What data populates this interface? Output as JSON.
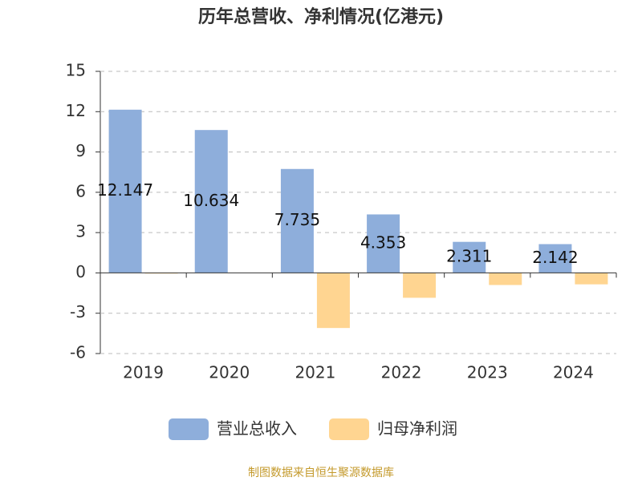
{
  "chart_data": {
    "type": "bar",
    "title": "历年总营收、净利情况(亿港元)",
    "categories": [
      "2019",
      "2020",
      "2021",
      "2022",
      "2023",
      "2024"
    ],
    "series": [
      {
        "name": "营业总收入",
        "color": "#8eaedb",
        "values": [
          12.147,
          10.634,
          7.735,
          4.353,
          2.311,
          2.142
        ],
        "show_labels": true
      },
      {
        "name": "归母净利润",
        "color": "#ffd591",
        "values": [
          -0.05,
          0,
          -4.1,
          -1.85,
          -0.9,
          -0.85
        ],
        "show_labels": false
      }
    ],
    "ylim": [
      -6,
      15
    ],
    "yticks": [
      -6,
      -3,
      0,
      3,
      6,
      9,
      12,
      15
    ],
    "grid": true,
    "legend": "bottom",
    "source": "制图数据来自恒生聚源数据库"
  }
}
